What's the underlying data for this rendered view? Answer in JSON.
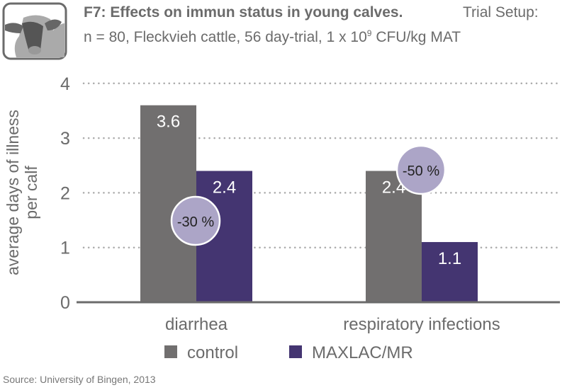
{
  "header": {
    "title": "F7: Effects on immun status in young calves.",
    "trial_setup": "Trial Setup:",
    "subtitle_pre": "n = 80, Fleckvieh cattle, 56 day-trial, 1 x 10",
    "subtitle_exp": "9",
    "subtitle_post": " CFU/kg MAT",
    "icon": "cow-head-icon"
  },
  "source": "Source: University of Bingen, 2013",
  "chart_data": {
    "type": "bar",
    "title": "F7: Effects on immun status in young calves.",
    "ylabel": "average days of illness per calf",
    "ylabel_lines": [
      "average days of illness",
      "per calf"
    ],
    "ylim": [
      0,
      4
    ],
    "yticks": [
      "0",
      "1",
      "2",
      "3",
      "4"
    ],
    "grid": true,
    "categories": [
      "diarrhea",
      "respiratory infections"
    ],
    "series": [
      {
        "name": "control",
        "color": "#716f6f",
        "values": [
          3.6,
          2.4
        ],
        "labels": [
          "3.6",
          "2.4"
        ]
      },
      {
        "name": "MAXLAC/MR",
        "color": "#443571",
        "values": [
          2.4,
          1.1
        ],
        "labels": [
          "2.4",
          "1.1"
        ]
      }
    ],
    "annotations": [
      "-30 %",
      "-50 %"
    ],
    "annotation_color": "#aca5c7",
    "legend": "bottom"
  }
}
